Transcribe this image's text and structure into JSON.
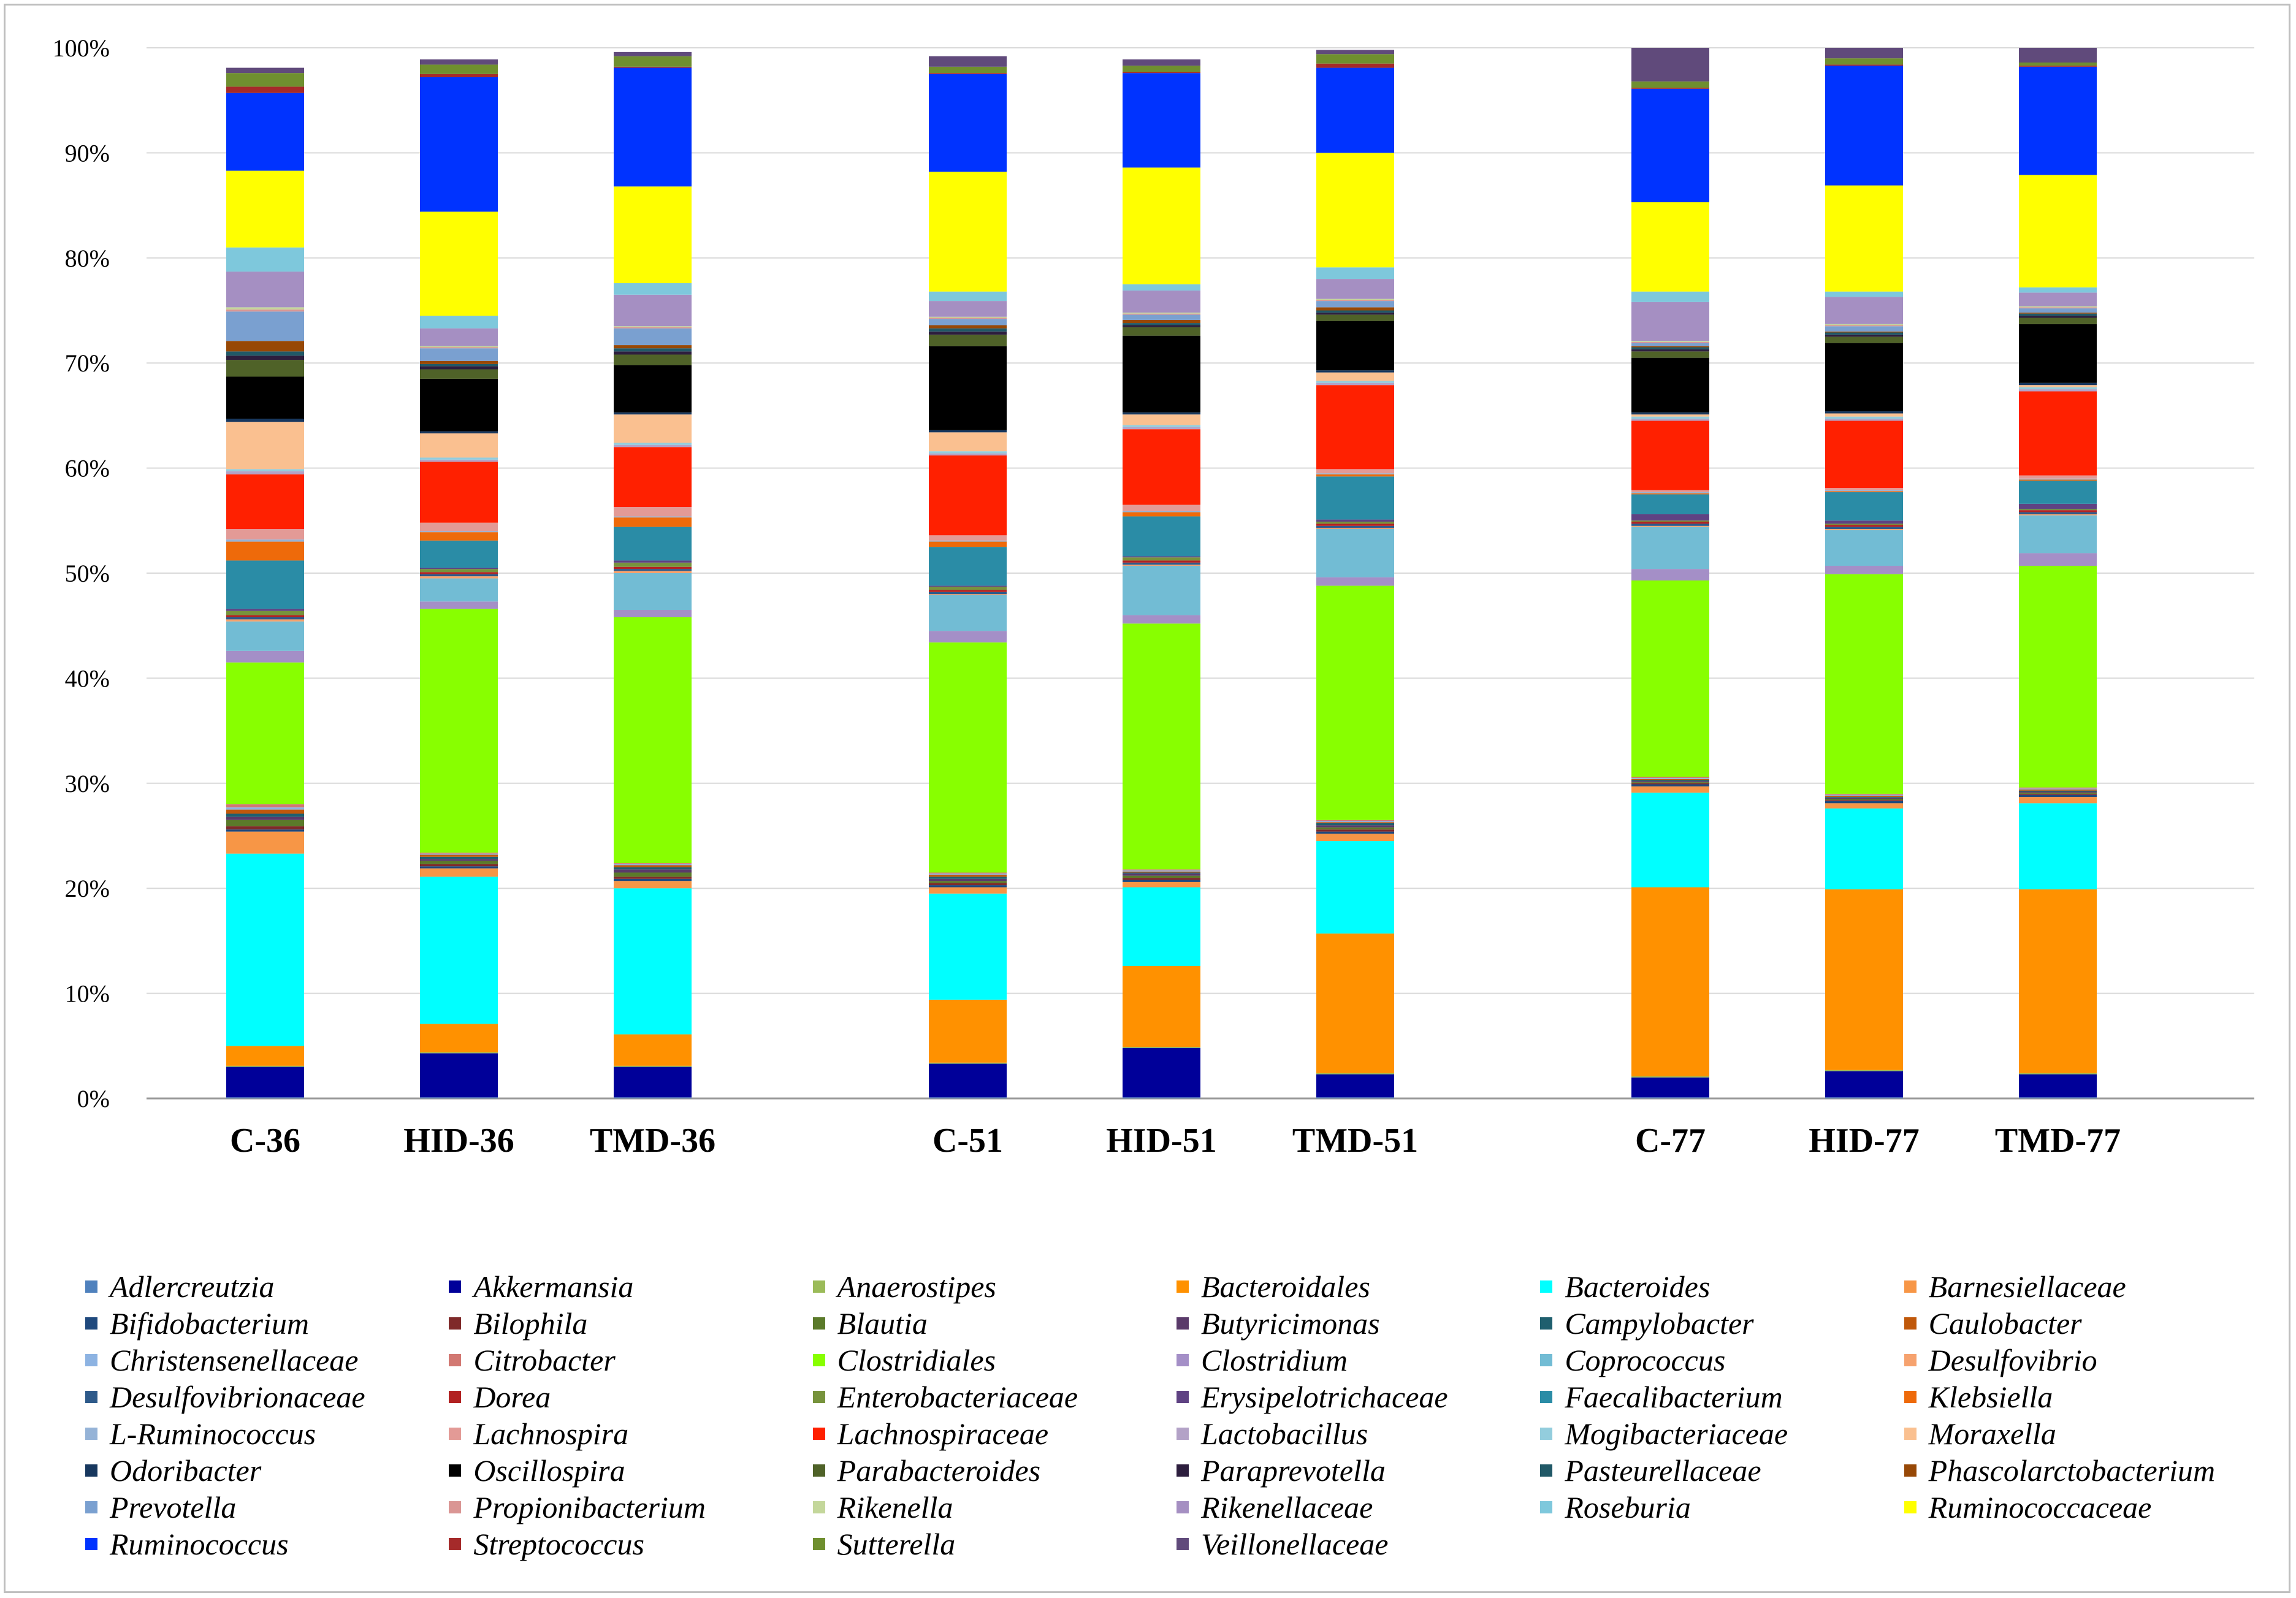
{
  "chart_data": {
    "type": "bar",
    "stacked": true,
    "percent": true,
    "categories": [
      "C-36",
      "HID-36",
      "TMD-36",
      "C-51",
      "HID-51",
      "TMD-51",
      "C-77",
      "HID-77",
      "TMD-77"
    ],
    "groups": [
      [
        "C-36",
        "HID-36",
        "TMD-36"
      ],
      [
        "C-51",
        "HID-51",
        "TMD-51"
      ],
      [
        "C-77",
        "HID-77",
        "TMD-77"
      ]
    ],
    "ylim": [
      0,
      100
    ],
    "yticks": [
      "0%",
      "10%",
      "20%",
      "30%",
      "40%",
      "50%",
      "60%",
      "70%",
      "80%",
      "90%",
      "100%"
    ],
    "grid": true,
    "legend_position": "bottom",
    "series": [
      {
        "name": "Adlercreutzia",
        "color": "#4f81bd",
        "values": [
          0.1,
          0.1,
          0.1,
          0.1,
          0.1,
          0.1,
          0.1,
          0.1,
          0.1
        ]
      },
      {
        "name": "Akkermansia",
        "color": "#000099",
        "values": [
          2.9,
          4.2,
          2.9,
          3.2,
          4.7,
          2.2,
          1.9,
          2.5,
          2.2
        ]
      },
      {
        "name": "Anaerostipes",
        "color": "#9bbb59",
        "values": [
          0.1,
          0.1,
          0.1,
          0.1,
          0.1,
          0.1,
          0.1,
          0.1,
          0.1
        ]
      },
      {
        "name": "Bacteroidales",
        "color": "#ff9100",
        "values": [
          1.9,
          2.7,
          3.0,
          6.0,
          7.7,
          13.3,
          18.0,
          17.2,
          17.5
        ]
      },
      {
        "name": "Bacteroides",
        "color": "#00ffff",
        "values": [
          18.3,
          14.0,
          13.9,
          10.1,
          7.5,
          8.8,
          9.0,
          7.7,
          8.2
        ]
      },
      {
        "name": "Barnesiellaceae",
        "color": "#f79646",
        "values": [
          2.1,
          0.8,
          0.7,
          0.6,
          0.5,
          0.7,
          0.6,
          0.5,
          0.6
        ]
      },
      {
        "name": "Bifidobacterium",
        "color": "#1f497d",
        "values": [
          0.2,
          0.2,
          0.2,
          0.2,
          0.2,
          0.2,
          0.2,
          0.2,
          0.2
        ]
      },
      {
        "name": "Bilophila",
        "color": "#7f2a2a",
        "values": [
          0.3,
          0.2,
          0.2,
          0.2,
          0.2,
          0.2,
          0.1,
          0.1,
          0.1
        ]
      },
      {
        "name": "Blautia",
        "color": "#5b7a2a",
        "values": [
          0.6,
          0.3,
          0.4,
          0.2,
          0.2,
          0.2,
          0.1,
          0.1,
          0.1
        ]
      },
      {
        "name": "Butyricimonas",
        "color": "#5a3a6a",
        "values": [
          0.3,
          0.2,
          0.3,
          0.2,
          0.2,
          0.2,
          0.1,
          0.1,
          0.1
        ]
      },
      {
        "name": "Campylobacter",
        "color": "#1f5f6e",
        "values": [
          0.3,
          0.2,
          0.2,
          0.2,
          0.1,
          0.2,
          0.1,
          0.1,
          0.1
        ]
      },
      {
        "name": "Caulobacter",
        "color": "#c0580a",
        "values": [
          0.4,
          0.2,
          0.2,
          0.2,
          0.1,
          0.1,
          0.1,
          0.1,
          0.1
        ]
      },
      {
        "name": "Christensenellaceae",
        "color": "#8db3e2",
        "values": [
          0.2,
          0.1,
          0.1,
          0.1,
          0.1,
          0.1,
          0.1,
          0.1,
          0.1
        ]
      },
      {
        "name": "Citrobacter",
        "color": "#d27872",
        "values": [
          0.3,
          0.1,
          0.1,
          0.1,
          0.1,
          0.1,
          0.1,
          0.1,
          0.1
        ]
      },
      {
        "name": "Clostridiales",
        "color": "#88ff00",
        "values": [
          13.5,
          23.2,
          23.4,
          21.9,
          23.4,
          22.3,
          18.7,
          20.9,
          21.1
        ]
      },
      {
        "name": "Clostridium",
        "color": "#a48fc7",
        "values": [
          1.1,
          0.7,
          0.7,
          1.1,
          0.8,
          0.8,
          1.1,
          0.8,
          1.2
        ]
      },
      {
        "name": "Coprococcus",
        "color": "#72bcd4",
        "values": [
          2.8,
          2.2,
          3.5,
          3.4,
          4.7,
          4.6,
          4.0,
          3.4,
          3.6
        ]
      },
      {
        "name": "Desulfovibrio",
        "color": "#f6a26e",
        "values": [
          0.2,
          0.2,
          0.2,
          0.1,
          0.1,
          0.1,
          0.1,
          0.1,
          0.1
        ]
      },
      {
        "name": "Desulfovibrionaceae",
        "color": "#2e5a8a",
        "values": [
          0.2,
          0.2,
          0.2,
          0.2,
          0.2,
          0.2,
          0.2,
          0.2,
          0.2
        ]
      },
      {
        "name": "Dorea",
        "color": "#b22222",
        "values": [
          0.2,
          0.2,
          0.2,
          0.2,
          0.2,
          0.2,
          0.2,
          0.2,
          0.2
        ]
      },
      {
        "name": "Enterobacteriaceae",
        "color": "#77933c",
        "values": [
          0.4,
          0.3,
          0.4,
          0.3,
          0.3,
          0.2,
          0.1,
          0.1,
          0.1
        ]
      },
      {
        "name": "Erysipelotrichaceae",
        "color": "#5f4283",
        "values": [
          0.2,
          0.1,
          0.2,
          0.1,
          0.1,
          0.2,
          0.6,
          0.3,
          0.5
        ]
      },
      {
        "name": "Faecalibacterium",
        "color": "#2a8ca6",
        "values": [
          4.6,
          2.6,
          3.2,
          3.7,
          3.8,
          4.1,
          1.9,
          2.7,
          2.2
        ]
      },
      {
        "name": "Klebsiella",
        "color": "#ee6a0a",
        "values": [
          1.8,
          0.8,
          0.9,
          0.5,
          0.4,
          0.2,
          0.1,
          0.1,
          0.1
        ]
      },
      {
        "name": "L-Ruminococcus",
        "color": "#95b3d7",
        "values": [
          0.2,
          0.1,
          0.1,
          0.1,
          0.1,
          0.1,
          0.1,
          0.1,
          0.1
        ]
      },
      {
        "name": "Lachnospira",
        "color": "#e39a96",
        "values": [
          1.0,
          0.8,
          0.9,
          0.5,
          0.6,
          0.4,
          0.2,
          0.2,
          0.3
        ]
      },
      {
        "name": "Lachnospiraceae",
        "color": "#ff2000",
        "values": [
          5.2,
          5.8,
          5.7,
          7.6,
          7.2,
          8.0,
          6.6,
          6.4,
          8.0
        ]
      },
      {
        "name": "Lactobacillus",
        "color": "#b3a2c7",
        "values": [
          0.3,
          0.2,
          0.2,
          0.2,
          0.2,
          0.2,
          0.2,
          0.2,
          0.2
        ]
      },
      {
        "name": "Mogibacteriaceae",
        "color": "#93cddd",
        "values": [
          0.2,
          0.2,
          0.2,
          0.2,
          0.2,
          0.2,
          0.2,
          0.2,
          0.2
        ]
      },
      {
        "name": "Moraxella",
        "color": "#fac090",
        "values": [
          4.5,
          2.3,
          2.7,
          1.8,
          1.0,
          0.8,
          0.2,
          0.3,
          0.2
        ]
      },
      {
        "name": "Odoribacter",
        "color": "#17375e",
        "values": [
          0.3,
          0.2,
          0.2,
          0.2,
          0.2,
          0.2,
          0.2,
          0.2,
          0.2
        ]
      },
      {
        "name": "Oscillospira",
        "color": "#000000",
        "values": [
          4.0,
          5.0,
          4.5,
          8.0,
          7.3,
          4.7,
          5.2,
          6.5,
          5.6
        ]
      },
      {
        "name": "Parabacteroides",
        "color": "#4f6228",
        "values": [
          1.6,
          0.9,
          1.0,
          1.1,
          0.8,
          0.6,
          0.6,
          0.6,
          0.6
        ]
      },
      {
        "name": "Paraprevotella",
        "color": "#2d1e3e",
        "values": [
          0.4,
          0.3,
          0.3,
          0.3,
          0.2,
          0.2,
          0.2,
          0.2,
          0.2
        ]
      },
      {
        "name": "Pasteurellaceae",
        "color": "#215967",
        "values": [
          0.4,
          0.2,
          0.3,
          0.3,
          0.2,
          0.2,
          0.2,
          0.2,
          0.2
        ]
      },
      {
        "name": "Phascolarctobacterium",
        "color": "#974806",
        "values": [
          1.0,
          0.3,
          0.3,
          0.3,
          0.3,
          0.3,
          0.1,
          0.1,
          0.1
        ]
      },
      {
        "name": "Prevotella",
        "color": "#7aa0d0",
        "values": [
          2.8,
          1.2,
          1.6,
          0.6,
          0.5,
          0.6,
          0.3,
          0.5,
          0.4
        ]
      },
      {
        "name": "Propionibacterium",
        "color": "#da9694",
        "values": [
          0.2,
          0.1,
          0.1,
          0.1,
          0.1,
          0.1,
          0.1,
          0.1,
          0.1
        ]
      },
      {
        "name": "Rikenella",
        "color": "#c4d79b",
        "values": [
          0.2,
          0.1,
          0.1,
          0.1,
          0.1,
          0.1,
          0.1,
          0.1,
          0.1
        ]
      },
      {
        "name": "Rikenellaceae",
        "color": "#a58fc2",
        "values": [
          3.4,
          1.7,
          3.0,
          1.5,
          2.1,
          1.9,
          3.7,
          2.6,
          1.3
        ]
      },
      {
        "name": "Roseburia",
        "color": "#7ec8dc",
        "values": [
          2.3,
          1.2,
          1.1,
          0.9,
          0.6,
          1.1,
          1.0,
          0.5,
          0.5
        ]
      },
      {
        "name": "Ruminococcaceae",
        "color": "#ffff00",
        "values": [
          7.3,
          9.9,
          9.2,
          11.4,
          11.1,
          10.9,
          8.5,
          10.1,
          10.7
        ]
      },
      {
        "name": "Ruminococcus",
        "color": "#0033ff",
        "values": [
          7.4,
          12.8,
          11.3,
          9.3,
          9.0,
          8.1,
          10.8,
          11.4,
          10.3
        ]
      },
      {
        "name": "Streptococcus",
        "color": "#a52a2a",
        "values": [
          0.6,
          0.3,
          0.1,
          0.1,
          0.1,
          0.4,
          0.1,
          0.1,
          0.1
        ]
      },
      {
        "name": "Sutterella",
        "color": "#6f8f2f",
        "values": [
          1.3,
          0.9,
          1.0,
          0.6,
          0.6,
          0.9,
          0.6,
          0.6,
          0.3
        ]
      },
      {
        "name": "Veillonellaceae",
        "color": "#604a7b",
        "values": [
          0.5,
          0.5,
          0.4,
          1.0,
          0.6,
          0.4,
          3.5,
          1.0,
          1.9
        ]
      }
    ]
  }
}
